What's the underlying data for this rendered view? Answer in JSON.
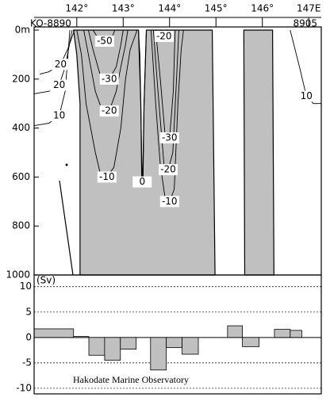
{
  "chart_data": [
    {
      "type": "contour",
      "labels": [
        "KO-8890",
        "8905"
      ],
      "xlim": [
        141.08,
        147.27
      ],
      "xticks": [
        {
          "value": 142,
          "label": "142°"
        },
        {
          "value": 143,
          "label": "143°"
        },
        {
          "value": 144,
          "label": "144°"
        },
        {
          "value": 145,
          "label": "145°"
        },
        {
          "value": 146,
          "label": "146°"
        },
        {
          "value": 147,
          "label": "147E"
        }
      ],
      "ylim": [
        0,
        1000
      ],
      "yticks": [
        {
          "value": 0,
          "label": "0m"
        },
        200,
        400,
        600,
        800,
        1000
      ],
      "color": "#000000",
      "shaded_regions": [
        {
          "color": "#c0c0c0",
          "x": [
            141.93,
            142.0,
            142.07,
            142.07,
            144.98,
            144.92,
            143.5,
            143.45,
            143.42,
            143.4,
            143.38,
            143.33
          ],
          "y": [
            0,
            100,
            300,
            1000,
            1000,
            0,
            0,
            300,
            620,
            600,
            300,
            0
          ]
        },
        {
          "color": "#c0c0c0",
          "x": [
            145.6,
            146.22,
            146.25,
            145.62
          ],
          "y": [
            0,
            0,
            1000,
            1000
          ]
        }
      ],
      "contours": [
        {
          "level": -10,
          "x": [
            142.0,
            142.1,
            142.2,
            142.4,
            142.5,
            142.65,
            142.8,
            142.95,
            143.05,
            143.15,
            143.3
          ],
          "y": [
            0,
            100,
            300,
            500,
            580,
            600,
            560,
            400,
            200,
            80,
            0
          ]
        },
        {
          "level": -20,
          "x": [
            142.15,
            142.25,
            142.4,
            142.55,
            142.7,
            142.85,
            142.95,
            143.05,
            143.1
          ],
          "y": [
            0,
            100,
            250,
            330,
            330,
            250,
            150,
            60,
            0
          ]
        },
        {
          "level": -30,
          "x": [
            142.25,
            142.35,
            142.5,
            142.7,
            142.85,
            142.95,
            143.0
          ],
          "y": [
            0,
            80,
            180,
            200,
            150,
            60,
            0
          ]
        },
        {
          "level": -50,
          "x": [
            142.35,
            142.45,
            142.6,
            142.75,
            142.82
          ],
          "y": [
            0,
            30,
            45,
            35,
            0
          ]
        },
        {
          "level": 0,
          "x": [
            143.33,
            143.36,
            143.38,
            143.41,
            143.43,
            143.45,
            143.5
          ],
          "y": [
            0,
            100,
            300,
            620,
            600,
            300,
            0
          ]
        },
        {
          "level": -10,
          "x": [
            143.6,
            143.7,
            143.8,
            143.9,
            144.0,
            144.1,
            144.18,
            144.25,
            144.3
          ],
          "y": [
            0,
            300,
            550,
            680,
            700,
            650,
            300,
            80,
            0
          ]
        },
        {
          "level": -20,
          "x": [
            143.65,
            143.75,
            143.88,
            143.97,
            144.07,
            144.15,
            144.2
          ],
          "y": [
            0,
            250,
            550,
            570,
            500,
            200,
            0
          ]
        },
        {
          "level": -30,
          "x": [
            143.7,
            143.8,
            143.9,
            144.0,
            144.08,
            144.12
          ],
          "y": [
            0,
            200,
            420,
            440,
            250,
            0
          ]
        },
        {
          "level": -20,
          "x": [
            143.8,
            143.83,
            143.88,
            143.93,
            143.95
          ],
          "y": [
            0,
            15,
            20,
            15,
            0
          ]
        },
        {
          "level": 20,
          "x": [
            141.95,
            141.8,
            141.65,
            141.4,
            141.2
          ],
          "y": [
            0,
            80,
            140,
            170,
            180
          ]
        },
        {
          "level": 20,
          "x": [
            141.9,
            141.75,
            141.62,
            141.4,
            141.08
          ],
          "y": [
            0,
            150,
            225,
            250,
            260
          ]
        },
        {
          "level": 10,
          "x": [
            141.85,
            141.75,
            141.62,
            141.4,
            141.08
          ],
          "y": [
            0,
            250,
            350,
            380,
            390
          ]
        },
        {
          "level": 10,
          "x": [
            146.6,
            146.8,
            146.95,
            147.1,
            147.27
          ],
          "y": [
            0,
            150,
            270,
            300,
            300
          ]
        }
      ]
    },
    {
      "type": "histogram",
      "ylabel": "(Sv)",
      "annotation": "Hakodate Marine Observatory",
      "color": "#c0c0c0",
      "xlim": [
        141.08,
        147.27
      ],
      "bins": [
        141.08,
        141.93,
        142.26,
        142.6,
        142.94,
        143.28,
        143.59,
        143.93,
        144.27,
        144.62,
        145.25,
        145.57,
        145.93,
        146.26,
        146.6,
        146.85
      ],
      "values": [
        1.7,
        0.2,
        -3.5,
        -4.5,
        -2.3,
        0,
        -6.4,
        -2,
        -3.3,
        0,
        2.3,
        -1.8,
        0,
        1.6,
        1.4
      ],
      "ylim": [
        -11.1,
        12.3
      ],
      "yticks": [
        10,
        5,
        0,
        -5,
        -10
      ],
      "grid": true
    }
  ]
}
